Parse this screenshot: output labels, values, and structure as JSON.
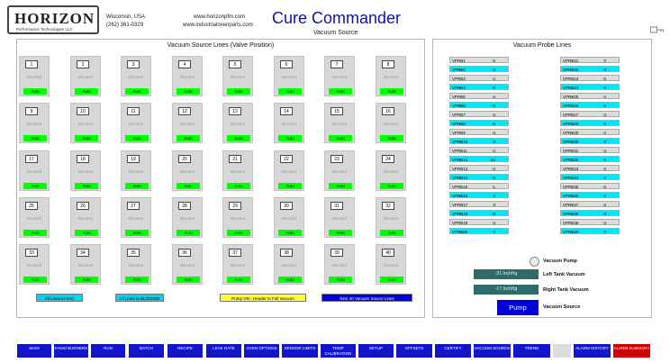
{
  "header": {
    "logo_text": "HORIZON",
    "logo_sub": "Performance Technologies LLC",
    "location": "Wisconsin, USA",
    "phone": "(262) 361-0329",
    "website1": "www.horizonpfm.com",
    "website2": "www.industrialovenparts.com",
    "title": "Cure Commander",
    "subtitle": "Vacuum Source"
  },
  "source_lines": {
    "title": "Vacuum Source Lines (Valve Position)",
    "valves": [
      {
        "num": "1",
        "state": "Blocked",
        "mode": "Auto"
      },
      {
        "num": "2",
        "state": "Blocked",
        "mode": "Auto"
      },
      {
        "num": "3",
        "state": "Blocked",
        "mode": "Auto"
      },
      {
        "num": "4",
        "state": "Blocked",
        "mode": "Auto"
      },
      {
        "num": "5",
        "state": "Blocked",
        "mode": "Auto"
      },
      {
        "num": "6",
        "state": "Blocked",
        "mode": "Auto"
      },
      {
        "num": "7",
        "state": "Blocked",
        "mode": "Auto"
      },
      {
        "num": "8",
        "state": "Blocked",
        "mode": "Auto"
      },
      {
        "num": "9",
        "state": "Blocked",
        "mode": "Auto"
      },
      {
        "num": "10",
        "state": "Blocked",
        "mode": "Auto"
      },
      {
        "num": "11",
        "state": "Blocked",
        "mode": "Auto"
      },
      {
        "num": "12",
        "state": "Blocked",
        "mode": "Auto"
      },
      {
        "num": "13",
        "state": "Blocked",
        "mode": "Auto"
      },
      {
        "num": "14",
        "state": "Blocked",
        "mode": "Auto"
      },
      {
        "num": "15",
        "state": "Blocked",
        "mode": "Auto"
      },
      {
        "num": "16",
        "state": "Blocked",
        "mode": "Auto"
      },
      {
        "num": "17",
        "state": "Blocked",
        "mode": "Auto"
      },
      {
        "num": "18",
        "state": "Blocked",
        "mode": "Auto"
      },
      {
        "num": "19",
        "state": "Blocked",
        "mode": "Auto"
      },
      {
        "num": "20",
        "state": "Blocked",
        "mode": "Auto"
      },
      {
        "num": "21",
        "state": "Blocked",
        "mode": "Auto"
      },
      {
        "num": "22",
        "state": "Blocked",
        "mode": "Auto"
      },
      {
        "num": "23",
        "state": "Blocked",
        "mode": "Auto"
      },
      {
        "num": "24",
        "state": "Blocked",
        "mode": "Auto"
      },
      {
        "num": "25",
        "state": "Blocked",
        "mode": "Auto"
      },
      {
        "num": "26",
        "state": "Blocked",
        "mode": "Auto"
      },
      {
        "num": "27",
        "state": "Blocked",
        "mode": "Auto"
      },
      {
        "num": "28",
        "state": "Blocked",
        "mode": "Auto"
      },
      {
        "num": "29",
        "state": "Blocked",
        "mode": "Auto"
      },
      {
        "num": "30",
        "state": "Blocked",
        "mode": "Auto"
      },
      {
        "num": "31",
        "state": "Blocked",
        "mode": "Auto"
      },
      {
        "num": "32",
        "state": "Blocked",
        "mode": "Auto"
      },
      {
        "num": "33",
        "state": "Blocked",
        "mode": "Auto"
      },
      {
        "num": "34",
        "state": "Blocked",
        "mode": "Auto"
      },
      {
        "num": "35",
        "state": "Blocked",
        "mode": "Auto"
      },
      {
        "num": "36",
        "state": "Blocked",
        "mode": "Auto"
      },
      {
        "num": "37",
        "state": "Blocked",
        "mode": "Auto"
      },
      {
        "num": "38",
        "state": "Blocked",
        "mode": "Auto"
      },
      {
        "num": "39",
        "state": "Blocked",
        "mode": "Auto"
      },
      {
        "num": "40",
        "state": "Blocked",
        "mode": "Auto"
      }
    ],
    "buttons": {
      "all_vac": "All Lines to VAC",
      "all_blocked": "All Lines to BLOCKED",
      "pump_on": "Pump ON - Header to Full Vacuum",
      "next_40": "Next 40 Vacuum Source Lines"
    }
  },
  "probe_lines": {
    "title": "Vacuum Probe Lines",
    "probes": [
      {
        "name": "VPRB1",
        "value": "-5"
      },
      {
        "name": "VPRB2",
        "value": "-2"
      },
      {
        "name": "VPRB3",
        "value": "-2"
      },
      {
        "name": "VPRB4",
        "value": "-5"
      },
      {
        "name": "VPRB5",
        "value": "-4"
      },
      {
        "name": "VPRB6",
        "value": "-5"
      },
      {
        "name": "VPRB7",
        "value": "-3"
      },
      {
        "name": "VPRB8",
        "value": "-6"
      },
      {
        "name": "VPRB9",
        "value": "-4"
      },
      {
        "name": "VPRB10",
        "value": "-3"
      },
      {
        "name": "VPRB11",
        "value": "-2"
      },
      {
        "name": "VPRB12",
        "value": "-12"
      },
      {
        "name": "VPRB13",
        "value": "-2"
      },
      {
        "name": "VPRB14",
        "value": "-5"
      },
      {
        "name": "VPRB15",
        "value": "-1"
      },
      {
        "name": "VPRB16",
        "value": "0"
      },
      {
        "name": "VPRB17",
        "value": "0"
      },
      {
        "name": "VPRB18",
        "value": "-5"
      },
      {
        "name": "VPRB19",
        "value": "-3"
      },
      {
        "name": "VPRB20",
        "value": "-4"
      },
      {
        "name": "VPRB21",
        "value": "0"
      },
      {
        "name": "VPRB22",
        "value": "-4"
      },
      {
        "name": "VPRB23",
        "value": "-5"
      },
      {
        "name": "VPRB24",
        "value": "-6"
      },
      {
        "name": "VPRB25",
        "value": "-4"
      },
      {
        "name": "VPRB26",
        "value": "-5"
      },
      {
        "name": "VPRB27",
        "value": "-3"
      },
      {
        "name": "VPRB28",
        "value": "-5"
      },
      {
        "name": "VPRB29",
        "value": "-4"
      },
      {
        "name": "VPRB30",
        "value": "0"
      },
      {
        "name": "VPRB31",
        "value": "-3"
      },
      {
        "name": "VPRB32",
        "value": "-5"
      },
      {
        "name": "VPRB33",
        "value": "-3"
      },
      {
        "name": "VPRB34",
        "value": "-2"
      },
      {
        "name": "VPRB35",
        "value": "-5"
      },
      {
        "name": "VPRB36",
        "value": "-2"
      },
      {
        "name": "VPRB37",
        "value": "-3"
      },
      {
        "name": "VPRB38",
        "value": "-4"
      },
      {
        "name": "VPRB39",
        "value": "-3"
      },
      {
        "name": "VPRB40",
        "value": "0"
      }
    ]
  },
  "vacuum": {
    "pump_label": "Vacuum Pump",
    "left_value": "-21 InchHg",
    "left_label": "Left Tank Vacuum",
    "right_value": "-17 InchHg",
    "right_label": "Right Tank Vacuum",
    "pump_button": "Pump",
    "source_label": "Vacuum Source"
  },
  "nav": [
    {
      "label": "MAIN"
    },
    {
      "label": "FANS/ BURNERS"
    },
    {
      "label": "RUN"
    },
    {
      "label": "BATCH"
    },
    {
      "label": "RECIPE"
    },
    {
      "label": "LEAK RATE"
    },
    {
      "label": "OVEN OPTIONS"
    },
    {
      "label": "SENSOR LIMITS"
    },
    {
      "label": "TEMP CALIBRATION"
    },
    {
      "label": "SETUP"
    },
    {
      "label": "OFFSETS"
    },
    {
      "label": "CERTIFY"
    },
    {
      "label": "VACUUM SOURCE"
    },
    {
      "label": "TREND"
    },
    {
      "label": ""
    },
    {
      "label": "ALARM HISTORY"
    },
    {
      "label": "ALARM SUMMARY"
    }
  ],
  "colors": {
    "probe_cyan": "#00e8f8",
    "probe_gray": "#dcdcdc",
    "auto_green": "#00ff00",
    "nav_blue": "#1414c8",
    "alarm_red": "#cc0000"
  }
}
